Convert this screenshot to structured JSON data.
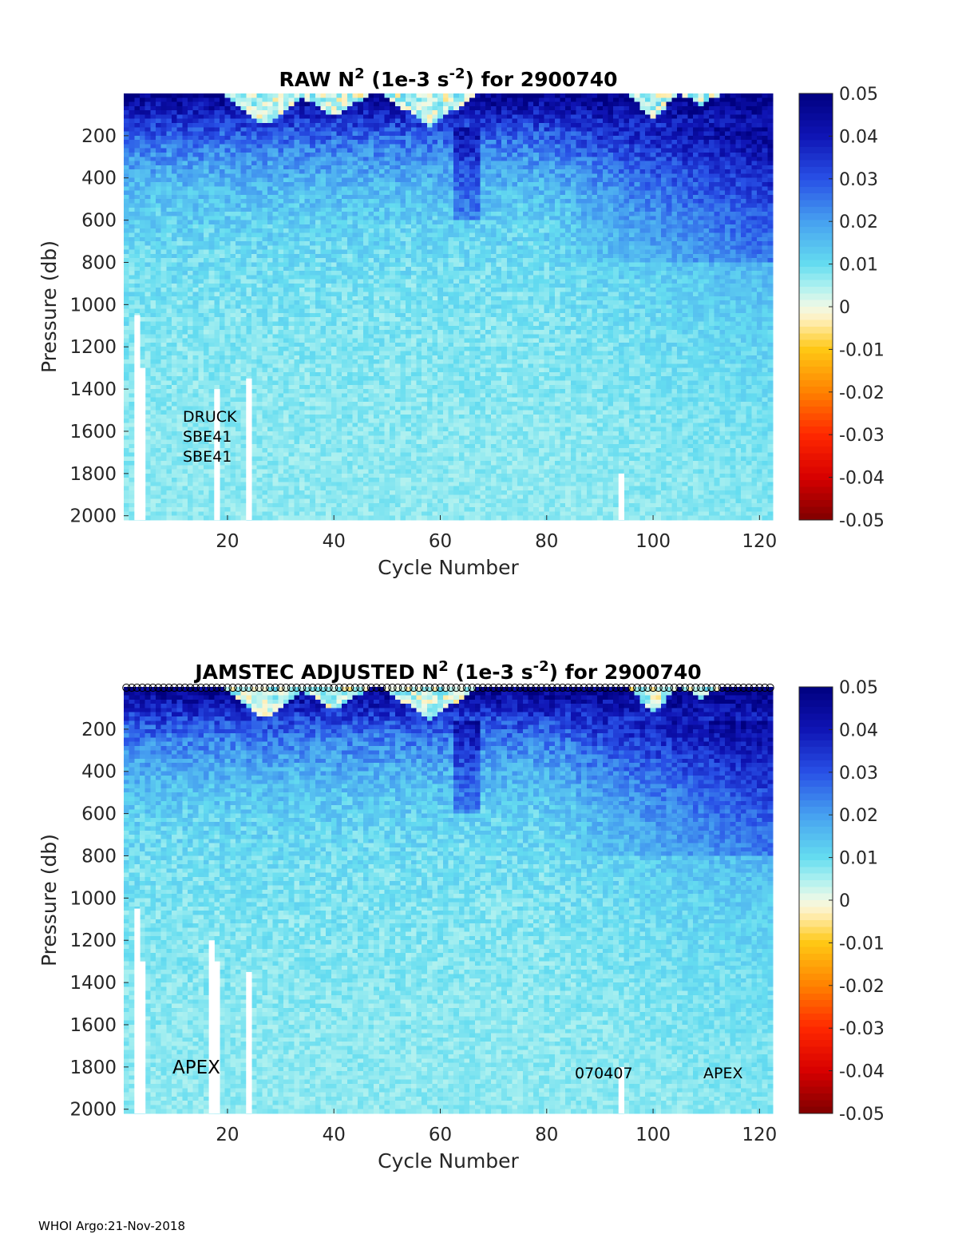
{
  "chart_data": [
    {
      "type": "heatmap",
      "title": {
        "prefix": "RAW N",
        "sup1": "2",
        "mid": " (1e-3 s",
        "sup2": "-2",
        "suffix": ") for 2900740"
      },
      "xlabel": "Cycle Number",
      "ylabel": "Pressure (db)",
      "x_range": [
        1,
        122
      ],
      "y_range": [
        0,
        2020
      ],
      "y_reversed": true,
      "x_ticks": [
        20,
        40,
        60,
        80,
        100,
        120
      ],
      "y_ticks": [
        200,
        400,
        600,
        800,
        1000,
        1200,
        1400,
        1600,
        1800,
        2000
      ],
      "colorbar": {
        "range": [
          -0.05,
          0.05
        ],
        "ticks": [
          "0.05",
          "0.04",
          "0.03",
          "0.02",
          "0.01",
          "0",
          "-0.01",
          "-0.02",
          "-0.03",
          "-0.04",
          "-0.05"
        ]
      },
      "annotations": [
        "DRUCK",
        "SBE41",
        "SBE41"
      ],
      "missing_columns": [
        {
          "cycle": 3,
          "from_pressure": 1050
        },
        {
          "cycle": 4,
          "from_pressure": 1300
        },
        {
          "cycle": 18,
          "from_pressure": 1400
        },
        {
          "cycle": 24,
          "from_pressure": 1350
        },
        {
          "cycle": 94,
          "from_pressure": 1800
        }
      ],
      "qc_markers": false
    },
    {
      "type": "heatmap",
      "title": {
        "prefix": "JAMSTEC  ADJUSTED N",
        "sup1": "2",
        "mid": " (1e-3 s",
        "sup2": "-2",
        "suffix": ") for 2900740"
      },
      "xlabel": "Cycle Number",
      "ylabel": "Pressure (db)",
      "x_range": [
        1,
        122
      ],
      "y_range": [
        0,
        2020
      ],
      "y_reversed": true,
      "x_ticks": [
        20,
        40,
        60,
        80,
        100,
        120
      ],
      "y_ticks": [
        200,
        400,
        600,
        800,
        1000,
        1200,
        1400,
        1600,
        1800,
        2000
      ],
      "colorbar": {
        "range": [
          -0.05,
          0.05
        ],
        "ticks": [
          "0.05",
          "0.04",
          "0.03",
          "0.02",
          "0.01",
          "0",
          "-0.01",
          "-0.02",
          "-0.03",
          "-0.04",
          "-0.05"
        ]
      },
      "annotations": [
        "APEX",
        "070407",
        "APEX"
      ],
      "missing_columns": [
        {
          "cycle": 3,
          "from_pressure": 1050
        },
        {
          "cycle": 4,
          "from_pressure": 1300
        },
        {
          "cycle": 17,
          "from_pressure": 1200
        },
        {
          "cycle": 18,
          "from_pressure": 1300
        },
        {
          "cycle": 24,
          "from_pressure": 1350
        },
        {
          "cycle": 94,
          "from_pressure": 1800
        }
      ],
      "qc_markers": true,
      "qc_marker_symbol": "circle"
    }
  ],
  "footer": "WHOI Argo:21-Nov-2018"
}
